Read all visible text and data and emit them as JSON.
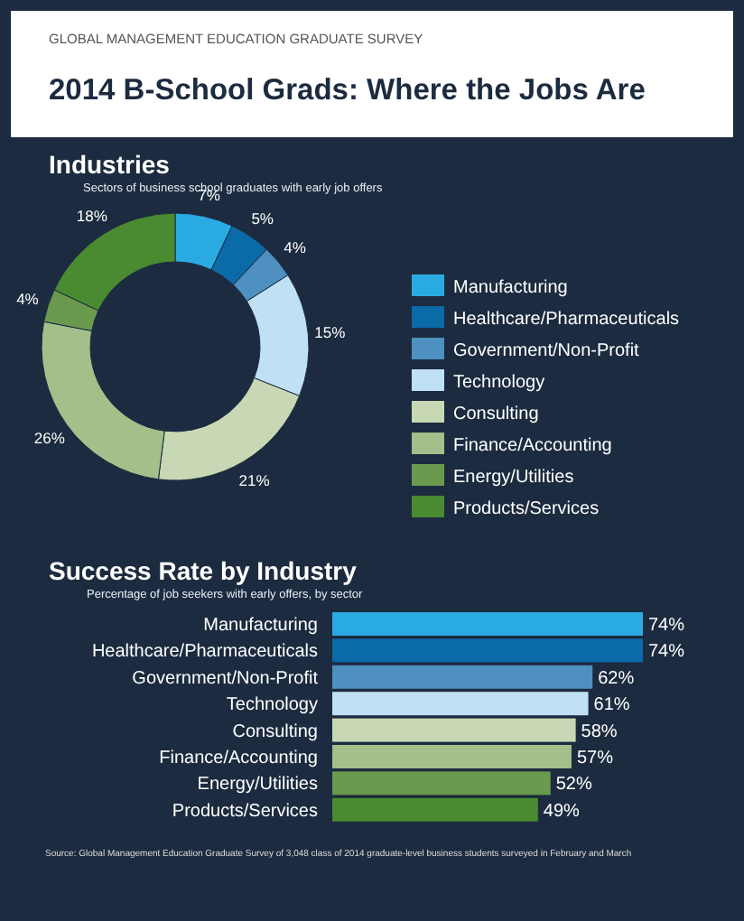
{
  "chart_data": [
    {
      "type": "donut",
      "annotations": [
        "GLOBAL MANAGEMENT EDUCATION GRADUATE SURVEY",
        "2014 B-School Grads: Where the Jobs Are"
      ],
      "title": "Industries",
      "subtitle": "Sectors of business school graduates with early job offers",
      "categories": [
        "Manufacturing",
        "Healthcare/Pharmaceuticals",
        "Government/Non-Profit",
        "Technology",
        "Consulting",
        "Finance/Accounting",
        "Energy/Utilities",
        "Products/Services"
      ],
      "values": [
        7,
        5,
        4,
        15,
        21,
        26,
        4,
        18
      ],
      "colors": [
        "#29abe2",
        "#0b6aa8",
        "#4e90c0",
        "#bfe0f5",
        "#c8d8b4",
        "#a3bf8a",
        "#6a9a4e",
        "#4a8a30"
      ],
      "value_labels": [
        "7%",
        "5%",
        "4%",
        "15%",
        "21%",
        "26%",
        "4%",
        "18%"
      ],
      "legend": "right"
    },
    {
      "type": "bar",
      "orientation": "horizontal",
      "title": "Success Rate by Industry",
      "subtitle": "Percentage of job seekers with early offers, by sector",
      "categories": [
        "Manufacturing",
        "Healthcare/Pharmaceuticals",
        "Government/Non-Profit",
        "Technology",
        "Consulting",
        "Finance/Accounting",
        "Energy/Utilities",
        "Products/Services"
      ],
      "values": [
        74,
        74,
        62,
        61,
        58,
        57,
        52,
        49
      ],
      "colors": [
        "#29abe2",
        "#0b6aa8",
        "#4e90c0",
        "#bfe0f5",
        "#c8d8b4",
        "#a3bf8a",
        "#6a9a4e",
        "#4a8a30"
      ],
      "value_labels": [
        "74%",
        "74%",
        "62%",
        "61%",
        "58%",
        "57%",
        "52%",
        "49%"
      ],
      "annotations": [
        "Source: Global Management Education Graduate Survey of 3,048 class of 2014 graduate-level business students surveyed in February and March"
      ]
    }
  ]
}
